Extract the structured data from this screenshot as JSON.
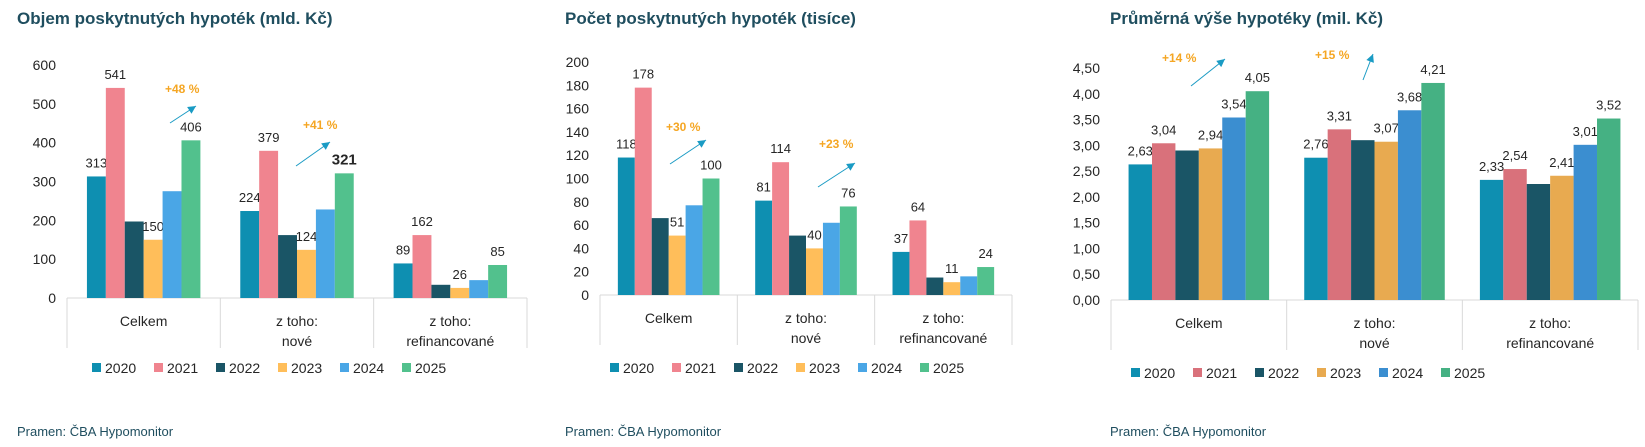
{
  "colors": {
    "title": "#1f4e5f",
    "annotation": "#f5a623",
    "arrow": "#1a9bc4",
    "axis": "#d9d9d9",
    "text": "#262626"
  },
  "icons": [
    "trend-arrow-icon"
  ],
  "charts": [
    {
      "title": "Objem poskytnutých hypoték (mld. Kč)",
      "source": "Pramen: ČBA Hypomonitor"
    },
    {
      "title": "Počet poskytnutých hypoték (tisíce)",
      "source": "Pramen: ČBA Hypomonitor"
    },
    {
      "title": "Průměrná výše hypotéky (mil. Kč)",
      "source": "Pramen: ČBA Hypomonitor"
    }
  ],
  "chart_data": [
    {
      "type": "bar",
      "title": "Objem poskytnutých hypoték (mld. Kč)",
      "categories": [
        [
          "Celkem"
        ],
        [
          "z toho:",
          "nové"
        ],
        [
          "z toho:",
          "refinancované"
        ]
      ],
      "ylim": [
        0,
        600
      ],
      "yticks": [
        "0",
        "100",
        "200",
        "300",
        "400",
        "500",
        "600"
      ],
      "ytick_values": [
        0,
        100,
        200,
        300,
        400,
        500,
        600
      ],
      "grid": false,
      "legend": "bottom",
      "series": [
        {
          "name": "2020",
          "color": "#0e8fb1",
          "values": [
            313,
            224,
            89
          ],
          "labels": [
            "313",
            "224",
            "89"
          ]
        },
        {
          "name": "2021",
          "color": "#f0848f",
          "values": [
            541,
            379,
            162
          ],
          "labels": [
            "541",
            "379",
            "162"
          ]
        },
        {
          "name": "2022",
          "color": "#1a5566",
          "values": [
            197,
            162,
            34
          ],
          "labels": [
            "",
            "",
            ""
          ]
        },
        {
          "name": "2023",
          "color": "#ffbe5a",
          "values": [
            150,
            124,
            26
          ],
          "labels": [
            "150",
            "124",
            "26"
          ]
        },
        {
          "name": "2024",
          "color": "#4aa6e6",
          "values": [
            275,
            228,
            46
          ],
          "labels": [
            "",
            "",
            ""
          ]
        },
        {
          "name": "2025",
          "color": "#52c18d",
          "values": [
            406,
            321,
            85
          ],
          "labels": [
            "406",
            "321",
            "85"
          ]
        }
      ],
      "annotations": [
        {
          "text": "+48 %",
          "category": 0
        },
        {
          "text": "+41 %",
          "category": 1
        }
      ]
    },
    {
      "type": "bar",
      "title": "Počet poskytnutých hypoték (tisíce)",
      "categories": [
        [
          "Celkem"
        ],
        [
          "z toho:",
          "nové"
        ],
        [
          "z toho:",
          "refinancované"
        ]
      ],
      "ylim": [
        0,
        200
      ],
      "yticks": [
        "0",
        "20",
        "40",
        "60",
        "80",
        "100",
        "120",
        "140",
        "160",
        "180",
        "200"
      ],
      "ytick_values": [
        0,
        20,
        40,
        60,
        80,
        100,
        120,
        140,
        160,
        180,
        200
      ],
      "grid": false,
      "legend": "bottom",
      "series": [
        {
          "name": "2020",
          "color": "#0e8fb1",
          "values": [
            118,
            81,
            37
          ],
          "labels": [
            "118",
            "81",
            "37"
          ]
        },
        {
          "name": "2021",
          "color": "#f0848f",
          "values": [
            178,
            114,
            64
          ],
          "labels": [
            "178",
            "114",
            "64"
          ]
        },
        {
          "name": "2022",
          "color": "#1a5566",
          "values": [
            66,
            51,
            15
          ],
          "labels": [
            "",
            "",
            ""
          ]
        },
        {
          "name": "2023",
          "color": "#ffbe5a",
          "values": [
            51,
            40,
            11
          ],
          "labels": [
            "51",
            "40",
            "11"
          ]
        },
        {
          "name": "2024",
          "color": "#4aa6e6",
          "values": [
            77,
            62,
            16
          ],
          "labels": [
            "",
            "",
            ""
          ]
        },
        {
          "name": "2025",
          "color": "#52c18d",
          "values": [
            100,
            76,
            24
          ],
          "labels": [
            "100",
            "76",
            "24"
          ]
        }
      ],
      "annotations": [
        {
          "text": "+30 %",
          "category": 0
        },
        {
          "text": "+23 %",
          "category": 1
        }
      ]
    },
    {
      "type": "bar",
      "title": "Průměrná výše hypotéky (mil. Kč)",
      "categories": [
        [
          "Celkem"
        ],
        [
          "z toho:",
          "nové"
        ],
        [
          "z toho:",
          "refinancované"
        ]
      ],
      "ylim": [
        0,
        4.5
      ],
      "yticks": [
        "0,00",
        "0,50",
        "1,00",
        "1,50",
        "2,00",
        "2,50",
        "3,00",
        "3,50",
        "4,00",
        "4,50"
      ],
      "ytick_values": [
        0,
        0.5,
        1,
        1.5,
        2,
        2.5,
        3,
        3.5,
        4,
        4.5
      ],
      "grid": false,
      "legend": "bottom",
      "series": [
        {
          "name": "2020",
          "color": "#0e8fb1",
          "values": [
            2.63,
            2.76,
            2.33
          ],
          "labels": [
            "2,63",
            "2,76",
            "2,33"
          ]
        },
        {
          "name": "2021",
          "color": "#d9717b",
          "values": [
            3.04,
            3.31,
            2.54
          ],
          "labels": [
            "3,04",
            "3,31",
            "2,54"
          ]
        },
        {
          "name": "2022",
          "color": "#1a5566",
          "values": [
            2.9,
            3.1,
            2.25
          ],
          "labels": [
            "",
            "",
            ""
          ]
        },
        {
          "name": "2023",
          "color": "#e8aa50",
          "values": [
            2.94,
            3.07,
            2.41
          ],
          "labels": [
            "2,94",
            "3,07",
            "2,41"
          ]
        },
        {
          "name": "2024",
          "color": "#3b8ed0",
          "values": [
            3.54,
            3.68,
            3.01
          ],
          "labels": [
            "3,54",
            "3,68",
            "3,01"
          ]
        },
        {
          "name": "2025",
          "color": "#45b183",
          "values": [
            4.05,
            4.21,
            3.52
          ],
          "labels": [
            "4,05",
            "4,21",
            "3,52"
          ]
        }
      ],
      "annotations": [
        {
          "text": "+14 %",
          "category": 0
        },
        {
          "text": "+15 %",
          "category": 1
        }
      ]
    }
  ]
}
